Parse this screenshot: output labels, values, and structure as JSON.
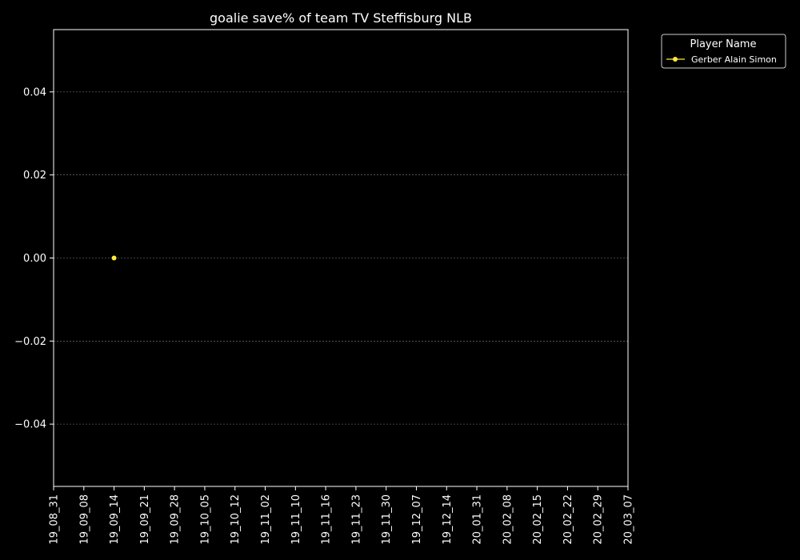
{
  "chart_data": {
    "type": "line",
    "title": "goalie save% of team TV Steffisburg NLB",
    "xlabel": "",
    "ylabel": "",
    "categories": [
      "19_08_31",
      "19_09_08",
      "19_09_14",
      "19_09_21",
      "19_09_28",
      "19_10_05",
      "19_10_12",
      "19_11_02",
      "19_11_10",
      "19_11_16",
      "19_11_23",
      "19_11_30",
      "19_12_07",
      "19_12_14",
      "20_01_31",
      "20_02_08",
      "20_02_15",
      "20_02_22",
      "20_02_29",
      "20_03_07"
    ],
    "ylim": [
      -0.055,
      0.055
    ],
    "yticks": [
      "0.04",
      "0.02",
      "0.00",
      "−0.02",
      "−0.04"
    ],
    "ytick_values": [
      0.04,
      0.02,
      0.0,
      -0.02,
      -0.04
    ],
    "grid": "horizontal dashed",
    "legend": {
      "title": "Player Name",
      "placement": "outside-top-right"
    },
    "series": [
      {
        "name": "Gerber Alain Simon",
        "color": "#ffeb3b",
        "points": [
          {
            "x": "19_09_14",
            "y": 0.0
          }
        ]
      }
    ]
  }
}
